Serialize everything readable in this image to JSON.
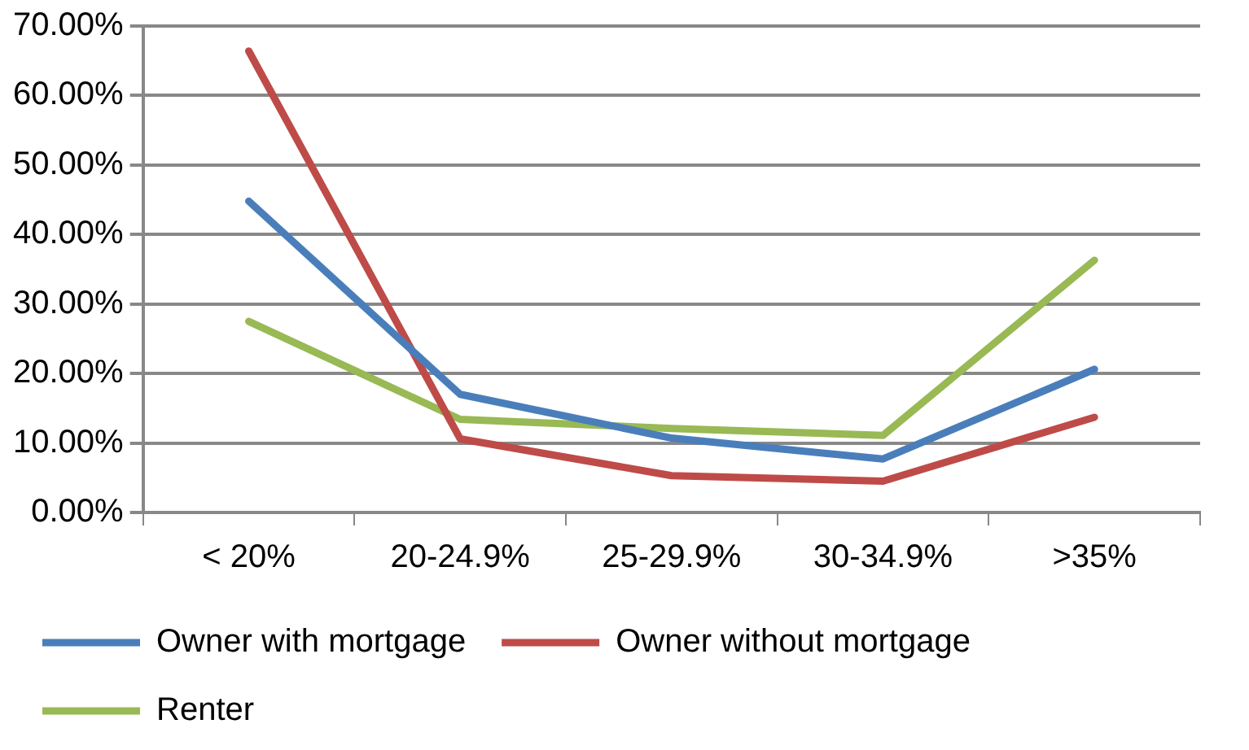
{
  "chart_data": {
    "type": "line",
    "categories": [
      "< 20%",
      "20-24.9%",
      "25-29.9%",
      "30-34.9%",
      ">35%"
    ],
    "series": [
      {
        "name": "Owner with mortgage",
        "color": "#4a7ebb",
        "values": [
          44.8,
          17.0,
          10.7,
          7.7,
          20.6
        ]
      },
      {
        "name": "Owner without mortgage",
        "color": "#be4b48",
        "values": [
          66.4,
          10.6,
          5.3,
          4.5,
          13.7
        ]
      },
      {
        "name": "Renter",
        "color": "#98b954",
        "values": [
          27.5,
          13.4,
          12.1,
          11.1,
          36.3
        ]
      }
    ],
    "ylim": [
      0,
      70
    ],
    "yticks": [
      {
        "value": 0,
        "label": "0.00%"
      },
      {
        "value": 10,
        "label": "10.00%"
      },
      {
        "value": 20,
        "label": "20.00%"
      },
      {
        "value": 30,
        "label": "30.00%"
      },
      {
        "value": 40,
        "label": "40.00%"
      },
      {
        "value": 50,
        "label": "50.00%"
      },
      {
        "value": 60,
        "label": "60.00%"
      },
      {
        "value": 70,
        "label": "70.00%"
      }
    ],
    "grid": "y",
    "legend": "bottom",
    "marker": "none",
    "line_style": "solid"
  }
}
